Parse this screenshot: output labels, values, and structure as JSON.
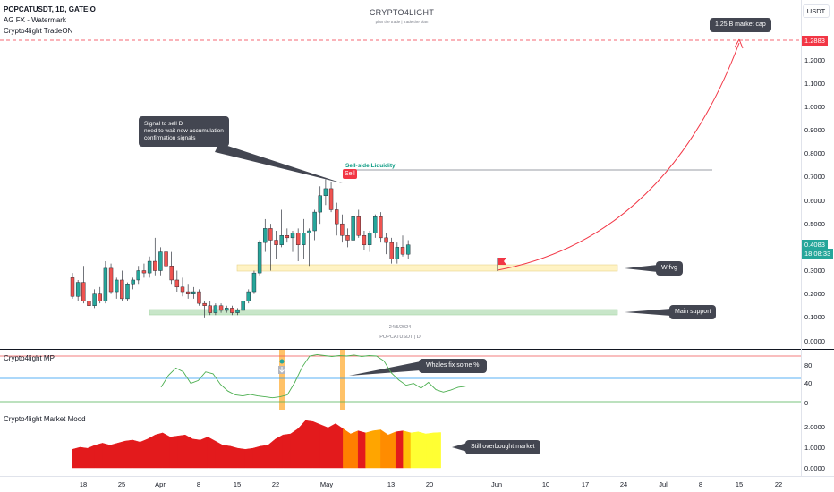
{
  "header": {
    "symbol_line": "POPCATUSDT, 1D, GATEIO",
    "watermark_line": "AG FX - Watermark",
    "indicator_line": "Crypto4light TradeON",
    "brand": "CRYPTO4LIGHT",
    "tagline": "plan the trade | trade the plan",
    "currency_button": "USDT"
  },
  "price_axis": {
    "labels": [
      "1.2000",
      "1.1000",
      "1.0000",
      "0.9000",
      "0.8000",
      "0.7000",
      "0.6000",
      "0.5000",
      "0.4000",
      "0.3000",
      "0.2000",
      "0.1000",
      "0.0000"
    ],
    "target_tag": "1.2883",
    "last_price_tag": "0.4083",
    "countdown_tag": "18:08:33"
  },
  "time_axis": {
    "labels": [
      "18",
      "25",
      "Apr",
      "8",
      "15",
      "22",
      "May",
      "13",
      "20",
      "Jun",
      "10",
      "17",
      "24",
      "Jul",
      "8",
      "15",
      "22"
    ]
  },
  "annotations": {
    "sell_signal_callout_lines": [
      "Signal to sell D",
      "need to wait new accumulation",
      "confirmation signals"
    ],
    "sell_marker": "Sell",
    "liquidity_label": "Sell-side Liquidity",
    "target_callout": "1.25 B market cap",
    "fvg_callout": "W fvg",
    "support_callout": "Main support",
    "date_label": "24/5/2024",
    "symbol_footer": "POPCATUSDT | D"
  },
  "mp_panel": {
    "title": "Crypto4light MP",
    "axis_labels": [
      "80",
      "40",
      "0"
    ],
    "callout": "Whales fix some %"
  },
  "mood_panel": {
    "title": "Crypto4light Market Mood",
    "axis_labels": [
      "2.0000",
      "1.0000",
      "0.0000"
    ],
    "callout": "Still overbought market"
  },
  "colors": {
    "bull": "#26a69a",
    "bear": "#ef5350",
    "target_line": "#f23645",
    "fvg_zone": "#fff3c4",
    "support_zone": "#c8e6c9",
    "callout_bg": "#434651"
  },
  "chart_data": [
    {
      "type": "candlestick",
      "title": "POPCATUSDT, 1D, GATEIO",
      "ylim": [
        0,
        1.3
      ],
      "x_ticks": [
        "18",
        "25",
        "Apr",
        "8",
        "15",
        "22",
        "May",
        "13",
        "20",
        "Jun",
        "10",
        "17",
        "24",
        "Jul",
        "8",
        "15",
        "22"
      ],
      "candles": [
        {
          "o": 0.27,
          "h": 0.29,
          "l": 0.18,
          "c": 0.19
        },
        {
          "o": 0.19,
          "h": 0.26,
          "l": 0.17,
          "c": 0.25
        },
        {
          "o": 0.25,
          "h": 0.32,
          "l": 0.16,
          "c": 0.17
        },
        {
          "o": 0.17,
          "h": 0.22,
          "l": 0.14,
          "c": 0.15
        },
        {
          "o": 0.15,
          "h": 0.22,
          "l": 0.14,
          "c": 0.2
        },
        {
          "o": 0.2,
          "h": 0.23,
          "l": 0.16,
          "c": 0.17
        },
        {
          "o": 0.17,
          "h": 0.34,
          "l": 0.16,
          "c": 0.31
        },
        {
          "o": 0.31,
          "h": 0.33,
          "l": 0.2,
          "c": 0.21
        },
        {
          "o": 0.21,
          "h": 0.27,
          "l": 0.18,
          "c": 0.26
        },
        {
          "o": 0.26,
          "h": 0.3,
          "l": 0.17,
          "c": 0.18
        },
        {
          "o": 0.18,
          "h": 0.25,
          "l": 0.17,
          "c": 0.24
        },
        {
          "o": 0.24,
          "h": 0.27,
          "l": 0.22,
          "c": 0.26
        },
        {
          "o": 0.26,
          "h": 0.32,
          "l": 0.24,
          "c": 0.3
        },
        {
          "o": 0.3,
          "h": 0.33,
          "l": 0.27,
          "c": 0.29
        },
        {
          "o": 0.29,
          "h": 0.36,
          "l": 0.27,
          "c": 0.34
        },
        {
          "o": 0.34,
          "h": 0.44,
          "l": 0.28,
          "c": 0.3
        },
        {
          "o": 0.3,
          "h": 0.4,
          "l": 0.28,
          "c": 0.38
        },
        {
          "o": 0.38,
          "h": 0.43,
          "l": 0.3,
          "c": 0.32
        },
        {
          "o": 0.32,
          "h": 0.38,
          "l": 0.24,
          "c": 0.26
        },
        {
          "o": 0.26,
          "h": 0.3,
          "l": 0.21,
          "c": 0.23
        },
        {
          "o": 0.23,
          "h": 0.27,
          "l": 0.19,
          "c": 0.21
        },
        {
          "o": 0.21,
          "h": 0.24,
          "l": 0.18,
          "c": 0.2
        },
        {
          "o": 0.2,
          "h": 0.23,
          "l": 0.18,
          "c": 0.21
        },
        {
          "o": 0.21,
          "h": 0.22,
          "l": 0.15,
          "c": 0.16
        },
        {
          "o": 0.16,
          "h": 0.17,
          "l": 0.1,
          "c": 0.15
        },
        {
          "o": 0.15,
          "h": 0.17,
          "l": 0.11,
          "c": 0.12
        },
        {
          "o": 0.12,
          "h": 0.16,
          "l": 0.11,
          "c": 0.15
        },
        {
          "o": 0.15,
          "h": 0.16,
          "l": 0.12,
          "c": 0.13
        },
        {
          "o": 0.13,
          "h": 0.15,
          "l": 0.12,
          "c": 0.14
        },
        {
          "o": 0.14,
          "h": 0.15,
          "l": 0.11,
          "c": 0.12
        },
        {
          "o": 0.12,
          "h": 0.14,
          "l": 0.11,
          "c": 0.13
        },
        {
          "o": 0.13,
          "h": 0.18,
          "l": 0.12,
          "c": 0.17
        },
        {
          "o": 0.17,
          "h": 0.22,
          "l": 0.16,
          "c": 0.21
        },
        {
          "o": 0.21,
          "h": 0.3,
          "l": 0.2,
          "c": 0.29
        },
        {
          "o": 0.29,
          "h": 0.43,
          "l": 0.28,
          "c": 0.42
        },
        {
          "o": 0.42,
          "h": 0.52,
          "l": 0.38,
          "c": 0.48
        },
        {
          "o": 0.48,
          "h": 0.5,
          "l": 0.3,
          "c": 0.43
        },
        {
          "o": 0.43,
          "h": 0.47,
          "l": 0.35,
          "c": 0.41
        },
        {
          "o": 0.41,
          "h": 0.56,
          "l": 0.4,
          "c": 0.45
        },
        {
          "o": 0.45,
          "h": 0.48,
          "l": 0.42,
          "c": 0.44
        },
        {
          "o": 0.44,
          "h": 0.47,
          "l": 0.38,
          "c": 0.46
        },
        {
          "o": 0.46,
          "h": 0.48,
          "l": 0.34,
          "c": 0.41
        },
        {
          "o": 0.41,
          "h": 0.52,
          "l": 0.35,
          "c": 0.46
        },
        {
          "o": 0.46,
          "h": 0.48,
          "l": 0.32,
          "c": 0.47
        },
        {
          "o": 0.47,
          "h": 0.56,
          "l": 0.43,
          "c": 0.55
        },
        {
          "o": 0.55,
          "h": 0.66,
          "l": 0.5,
          "c": 0.62
        },
        {
          "o": 0.62,
          "h": 0.69,
          "l": 0.58,
          "c": 0.65
        },
        {
          "o": 0.65,
          "h": 0.68,
          "l": 0.55,
          "c": 0.56
        },
        {
          "o": 0.56,
          "h": 0.59,
          "l": 0.45,
          "c": 0.5
        },
        {
          "o": 0.5,
          "h": 0.54,
          "l": 0.42,
          "c": 0.45
        },
        {
          "o": 0.45,
          "h": 0.48,
          "l": 0.4,
          "c": 0.43
        },
        {
          "o": 0.43,
          "h": 0.55,
          "l": 0.42,
          "c": 0.53
        },
        {
          "o": 0.53,
          "h": 0.56,
          "l": 0.44,
          "c": 0.45
        },
        {
          "o": 0.45,
          "h": 0.47,
          "l": 0.39,
          "c": 0.41
        },
        {
          "o": 0.41,
          "h": 0.47,
          "l": 0.38,
          "c": 0.46
        },
        {
          "o": 0.46,
          "h": 0.54,
          "l": 0.44,
          "c": 0.53
        },
        {
          "o": 0.53,
          "h": 0.55,
          "l": 0.42,
          "c": 0.44
        },
        {
          "o": 0.44,
          "h": 0.46,
          "l": 0.37,
          "c": 0.42
        },
        {
          "o": 0.42,
          "h": 0.44,
          "l": 0.33,
          "c": 0.35
        },
        {
          "o": 0.35,
          "h": 0.42,
          "l": 0.33,
          "c": 0.4
        },
        {
          "o": 0.4,
          "h": 0.45,
          "l": 0.36,
          "c": 0.37
        },
        {
          "o": 0.37,
          "h": 0.43,
          "l": 0.35,
          "c": 0.41
        }
      ],
      "levels": {
        "sell_side_liquidity": 0.73,
        "target": 1.2883,
        "last_price": 0.4083,
        "fvg_zone": [
          0.3,
          0.325
        ],
        "main_support_zone": [
          0.11,
          0.135
        ]
      }
    },
    {
      "type": "line",
      "title": "Crypto4light MP",
      "ylim": [
        -5,
        105
      ],
      "levels": [
        95,
        40,
        0
      ],
      "values": [
        30,
        55,
        70,
        62,
        38,
        44,
        62,
        58,
        36,
        22,
        14,
        12,
        15,
        12,
        10,
        8,
        10,
        14,
        40,
        72,
        95,
        98,
        96,
        94,
        96,
        95,
        97,
        94,
        96,
        95,
        85,
        60,
        45,
        34,
        38,
        28,
        40,
        25,
        20,
        24,
        30,
        32
      ]
    },
    {
      "type": "area",
      "title": "Crypto4light Market Mood",
      "ylim": [
        0,
        2.3
      ],
      "values": [
        0.9,
        1.0,
        0.95,
        1.1,
        1.2,
        1.1,
        1.2,
        1.3,
        1.35,
        1.25,
        1.4,
        1.6,
        1.7,
        1.5,
        1.55,
        1.6,
        1.4,
        1.35,
        1.5,
        1.3,
        1.1,
        1.05,
        0.95,
        0.9,
        0.95,
        1.05,
        1.1,
        1.4,
        1.6,
        1.65,
        1.9,
        2.3,
        2.25,
        2.1,
        1.95,
        2.15,
        1.9,
        1.65,
        1.8,
        1.7,
        1.8,
        1.85,
        1.6,
        1.75,
        1.8,
        1.7,
        1.75,
        1.65,
        1.7,
        1.72
      ]
    }
  ]
}
